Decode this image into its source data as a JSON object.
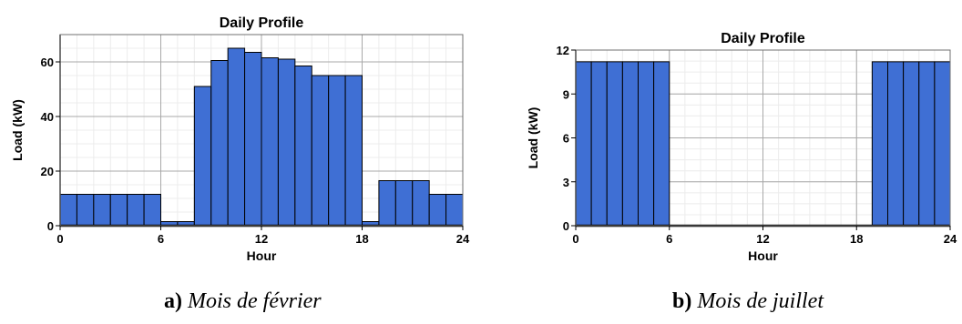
{
  "chart_data": [
    {
      "type": "bar",
      "title": "Daily Profile",
      "xlabel": "Hour",
      "ylabel": "Load (kW)",
      "xlim": [
        0,
        24
      ],
      "ylim": [
        0,
        70
      ],
      "xticks": [
        0,
        6,
        12,
        18,
        24
      ],
      "yticks": [
        0,
        20,
        40,
        60
      ],
      "grid": true,
      "bar_color": "#3f6fd4",
      "hours": [
        0,
        1,
        2,
        3,
        4,
        5,
        6,
        7,
        8,
        9,
        10,
        11,
        12,
        13,
        14,
        15,
        16,
        17,
        18,
        19,
        20,
        21,
        22,
        23
      ],
      "values": [
        11.5,
        11.5,
        11.5,
        11.5,
        11.5,
        11.5,
        1.5,
        1.5,
        51,
        60.5,
        65,
        63.5,
        61.5,
        61,
        58.5,
        55,
        55,
        55,
        1.5,
        16.5,
        16.5,
        16.5,
        11.5,
        11.5
      ],
      "caption_letter": "a)",
      "caption_text": "Mois de février"
    },
    {
      "type": "bar",
      "title": "Daily Profile",
      "xlabel": "Hour",
      "ylabel": "Load (kW)",
      "xlim": [
        0,
        24
      ],
      "ylim": [
        0,
        12
      ],
      "xticks": [
        0,
        6,
        12,
        18,
        24
      ],
      "yticks": [
        0,
        3,
        6,
        9,
        12
      ],
      "grid": true,
      "bar_color": "#3f6fd4",
      "hours": [
        0,
        1,
        2,
        3,
        4,
        5,
        6,
        7,
        8,
        9,
        10,
        11,
        12,
        13,
        14,
        15,
        16,
        17,
        18,
        19,
        20,
        21,
        22,
        23
      ],
      "values": [
        11.2,
        11.2,
        11.2,
        11.2,
        11.2,
        11.2,
        0,
        0,
        0,
        0,
        0,
        0,
        0,
        0,
        0,
        0,
        0,
        0,
        0,
        11.2,
        11.2,
        11.2,
        11.2,
        11.2
      ],
      "caption_letter": "b)",
      "caption_text": "Mois de juillet"
    }
  ]
}
